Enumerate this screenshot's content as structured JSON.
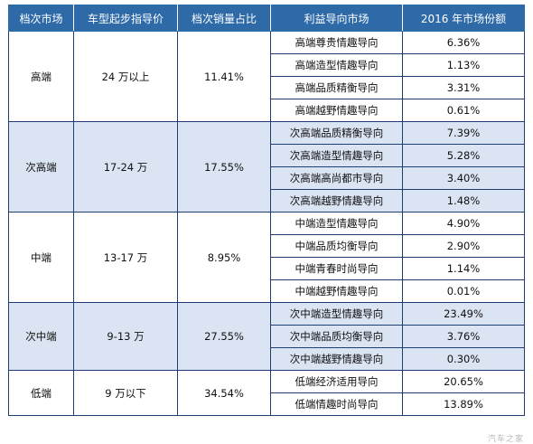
{
  "table": {
    "headers": [
      "档次市场",
      "车型起步指导价",
      "档次销量占比",
      "利益导向市场",
      "2016 年市场份额"
    ],
    "groups": [
      {
        "segment": "高端",
        "price": "24 万以上",
        "share": "11.41%",
        "shaded": false,
        "rows": [
          {
            "market": "高端尊贵情趣导向",
            "pct": "6.36%"
          },
          {
            "market": "高端造型情趣导向",
            "pct": "1.13%"
          },
          {
            "market": "高端品质精衡导向",
            "pct": "3.31%"
          },
          {
            "market": "高端越野情趣导向",
            "pct": "0.61%"
          }
        ]
      },
      {
        "segment": "次高端",
        "price": "17-24 万",
        "share": "17.55%",
        "shaded": true,
        "rows": [
          {
            "market": "次高端品质精衡导向",
            "pct": "7.39%"
          },
          {
            "market": "次高端造型情趣导向",
            "pct": "5.28%"
          },
          {
            "market": "次高端高尚都市导向",
            "pct": "3.40%"
          },
          {
            "market": "次高端越野情趣导向",
            "pct": "1.48%"
          }
        ]
      },
      {
        "segment": "中端",
        "price": "13-17 万",
        "share": "8.95%",
        "shaded": false,
        "rows": [
          {
            "market": "中端造型情趣导向",
            "pct": "4.90%"
          },
          {
            "market": "中端品质均衡导向",
            "pct": "2.90%"
          },
          {
            "market": "中端青春时尚导向",
            "pct": "1.14%"
          },
          {
            "market": "中端越野情趣导向",
            "pct": "0.01%"
          }
        ]
      },
      {
        "segment": "次中端",
        "price": "9-13 万",
        "share": "27.55%",
        "shaded": true,
        "rows": [
          {
            "market": "次中端造型情趣导向",
            "pct": "23.49%"
          },
          {
            "market": "次中端品质均衡导向",
            "pct": "3.76%"
          },
          {
            "market": "次中端越野情趣导向",
            "pct": "0.30%"
          }
        ]
      },
      {
        "segment": "低端",
        "price": "9 万以下",
        "share": "34.54%",
        "shaded": false,
        "rows": [
          {
            "market": "低端经济适用导向",
            "pct": "20.65%"
          },
          {
            "market": "低端情趣时尚导向",
            "pct": "13.89%"
          }
        ]
      }
    ]
  },
  "colors": {
    "header_bg": "#2e6aa8",
    "shaded_bg": "#dbe4f3",
    "border": "#1f3f73"
  },
  "corner_mark": "汽车之家"
}
